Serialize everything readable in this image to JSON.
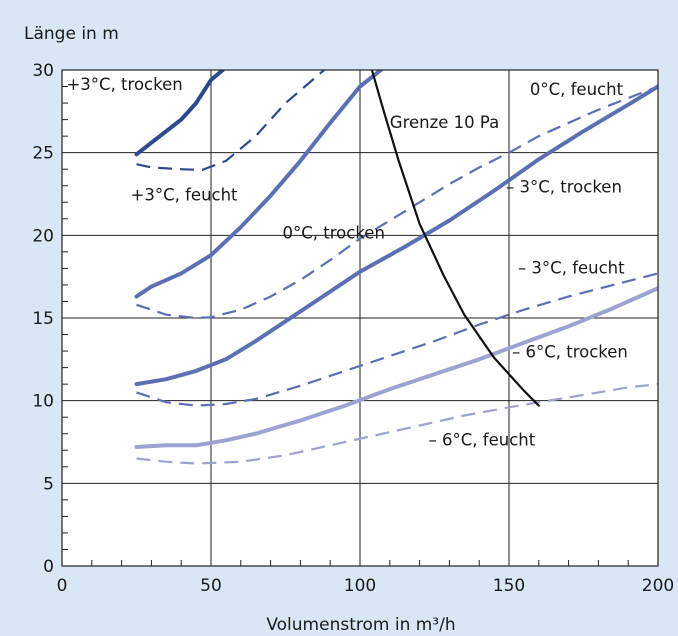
{
  "chart_data": {
    "type": "line",
    "ylabel": "Länge in m",
    "xlabel": "Volumenstrom in m³/h",
    "xlim": [
      0,
      200
    ],
    "ylim": [
      0,
      30
    ],
    "x_ticks": [
      0,
      50,
      100,
      150,
      200
    ],
    "y_ticks": [
      0,
      5,
      10,
      15,
      20,
      25,
      30
    ],
    "grid": true,
    "colors": {
      "dark": "#2b4a8c",
      "mid": "#5a70b2",
      "light": "#9ba4d0",
      "limit": "#111111",
      "grid": "#222222",
      "plot_bg": "#ffffff",
      "page_bg": "#d9e6f5"
    },
    "series": [
      {
        "style": "solid",
        "color": "dark",
        "width": 4,
        "points": [
          [
            25,
            24.9
          ],
          [
            30,
            25.6
          ],
          [
            40,
            27
          ],
          [
            45,
            28
          ],
          [
            50,
            29.4
          ],
          [
            54,
            30
          ]
        ]
      },
      {
        "style": "dashed",
        "color": "dark",
        "width": 2.2,
        "points": [
          [
            25,
            24.3
          ],
          [
            30,
            24.1
          ],
          [
            40,
            24.0
          ],
          [
            47,
            23.95
          ],
          [
            55,
            24.5
          ],
          [
            65,
            26
          ],
          [
            75,
            28
          ],
          [
            88,
            30
          ]
        ]
      },
      {
        "style": "solid",
        "color": "mid",
        "width": 4,
        "points": [
          [
            25,
            16.3
          ],
          [
            30,
            16.9
          ],
          [
            40,
            17.7
          ],
          [
            50,
            18.8
          ],
          [
            60,
            20.5
          ],
          [
            70,
            22.4
          ],
          [
            80,
            24.5
          ],
          [
            90,
            26.8
          ],
          [
            100,
            29
          ],
          [
            107,
            30
          ]
        ]
      },
      {
        "style": "dashed",
        "color": "mid",
        "width": 2.2,
        "points": [
          [
            25,
            15.8
          ],
          [
            35,
            15.2
          ],
          [
            45,
            15.0
          ],
          [
            50,
            15.05
          ],
          [
            60,
            15.5
          ],
          [
            70,
            16.3
          ],
          [
            80,
            17.3
          ],
          [
            90,
            18.5
          ],
          [
            100,
            19.8
          ],
          [
            110,
            20.9
          ],
          [
            120,
            22
          ],
          [
            130,
            23.1
          ],
          [
            140,
            24.1
          ],
          [
            150,
            25
          ],
          [
            160,
            26
          ],
          [
            170,
            26.8
          ],
          [
            180,
            27.6
          ],
          [
            190,
            28.3
          ],
          [
            200,
            29
          ]
        ]
      },
      {
        "style": "solid",
        "color": "mid",
        "width": 4,
        "points": [
          [
            25,
            11
          ],
          [
            35,
            11.3
          ],
          [
            45,
            11.8
          ],
          [
            55,
            12.5
          ],
          [
            65,
            13.6
          ],
          [
            75,
            14.8
          ],
          [
            85,
            16
          ],
          [
            100,
            17.8
          ],
          [
            115,
            19.3
          ],
          [
            130,
            20.9
          ],
          [
            145,
            22.7
          ],
          [
            160,
            24.6
          ],
          [
            175,
            26.3
          ],
          [
            190,
            27.9
          ],
          [
            200,
            29
          ]
        ]
      },
      {
        "style": "dashed",
        "color": "mid",
        "width": 2.2,
        "points": [
          [
            25,
            10.5
          ],
          [
            35,
            9.9
          ],
          [
            45,
            9.7
          ],
          [
            55,
            9.8
          ],
          [
            65,
            10.1
          ],
          [
            80,
            10.9
          ],
          [
            95,
            11.8
          ],
          [
            110,
            12.7
          ],
          [
            125,
            13.6
          ],
          [
            140,
            14.6
          ],
          [
            155,
            15.5
          ],
          [
            170,
            16.3
          ],
          [
            185,
            17
          ],
          [
            200,
            17.7
          ]
        ]
      },
      {
        "style": "solid",
        "color": "light",
        "width": 4,
        "points": [
          [
            25,
            7.2
          ],
          [
            35,
            7.3
          ],
          [
            45,
            7.3
          ],
          [
            55,
            7.6
          ],
          [
            65,
            8
          ],
          [
            80,
            8.8
          ],
          [
            95,
            9.7
          ],
          [
            110,
            10.7
          ],
          [
            125,
            11.6
          ],
          [
            140,
            12.5
          ],
          [
            155,
            13.5
          ],
          [
            170,
            14.5
          ],
          [
            185,
            15.6
          ],
          [
            200,
            16.8
          ]
        ]
      },
      {
        "style": "dashed",
        "color": "light",
        "width": 2.2,
        "points": [
          [
            25,
            6.5
          ],
          [
            35,
            6.3
          ],
          [
            45,
            6.2
          ],
          [
            60,
            6.3
          ],
          [
            75,
            6.7
          ],
          [
            90,
            7.3
          ],
          [
            105,
            7.9
          ],
          [
            120,
            8.5
          ],
          [
            135,
            9.1
          ],
          [
            150,
            9.6
          ],
          [
            160,
            9.9
          ],
          [
            170,
            10.2
          ],
          [
            180,
            10.5
          ],
          [
            190,
            10.8
          ],
          [
            200,
            11
          ]
        ]
      },
      {
        "style": "solid",
        "color": "limit",
        "width": 2.2,
        "points": [
          [
            104,
            30
          ],
          [
            108,
            27.5
          ],
          [
            113,
            24.5
          ],
          [
            120,
            20.7
          ],
          [
            128,
            17.6
          ],
          [
            135,
            15.2
          ],
          [
            145,
            12.6
          ],
          [
            155,
            10.6
          ],
          [
            160,
            9.7
          ]
        ]
      }
    ],
    "annotations": [
      {
        "text": "+3°C, trocken",
        "x": 1.5,
        "y": 28.8
      },
      {
        "text": "+3°C, feucht",
        "x": 23,
        "y": 22.1
      },
      {
        "text": "0°C, trocken",
        "x": 74,
        "y": 19.8
      },
      {
        "text": "Grenze 10 Pa",
        "x": 110,
        "y": 26.5
      },
      {
        "text": "0°C, feucht",
        "x": 157,
        "y": 28.5
      },
      {
        "text": "– 3°C, trocken",
        "x": 149,
        "y": 22.6
      },
      {
        "text": "– 3°C, feucht",
        "x": 153,
        "y": 17.7
      },
      {
        "text": "– 6°C, trocken",
        "x": 151,
        "y": 12.6
      },
      {
        "text": "– 6°C, feucht",
        "x": 123,
        "y": 7.3
      }
    ]
  }
}
